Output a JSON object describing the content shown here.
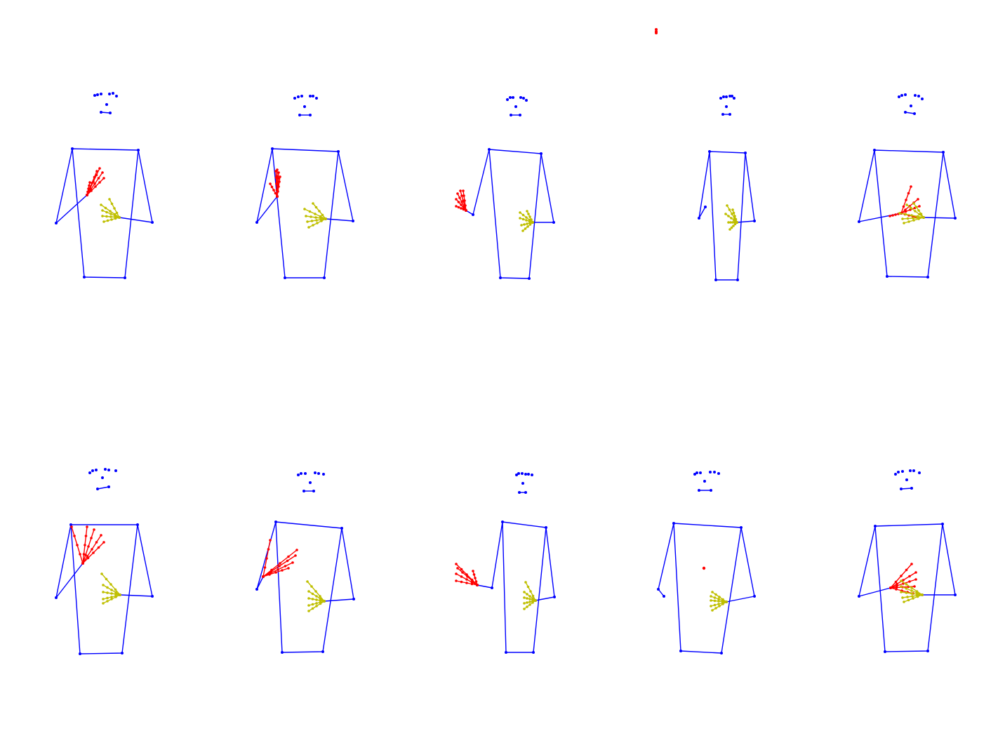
{
  "figure": {
    "description_free": true,
    "colors": {
      "body": "#0000ff",
      "right_hand": "#ff0000",
      "left_hand": "#bfbf00",
      "background": "#ffffff"
    },
    "rows": 2,
    "columns": 5,
    "panels": [
      {
        "id": "p1",
        "row": 0,
        "col": 0,
        "pose": "right-hand-at-chest"
      },
      {
        "id": "p2",
        "row": 0,
        "col": 1,
        "pose": "right-hand-at-shoulder"
      },
      {
        "id": "p3",
        "row": 0,
        "col": 2,
        "pose": "right-hand-out-side"
      },
      {
        "id": "p4",
        "row": 0,
        "col": 3,
        "pose": "right-hand-missing"
      },
      {
        "id": "p5",
        "row": 0,
        "col": 4,
        "pose": "both-hands-center"
      },
      {
        "id": "p6",
        "row": 1,
        "col": 0,
        "pose": "right-hand-open-chest"
      },
      {
        "id": "p7",
        "row": 1,
        "col": 1,
        "pose": "right-hand-open-shoulder"
      },
      {
        "id": "p8",
        "row": 1,
        "col": 2,
        "pose": "right-hand-out-side"
      },
      {
        "id": "p9",
        "row": 1,
        "col": 3,
        "pose": "right-hand-missing"
      },
      {
        "id": "p10",
        "row": 1,
        "col": 4,
        "pose": "both-hands-center"
      }
    ]
  }
}
